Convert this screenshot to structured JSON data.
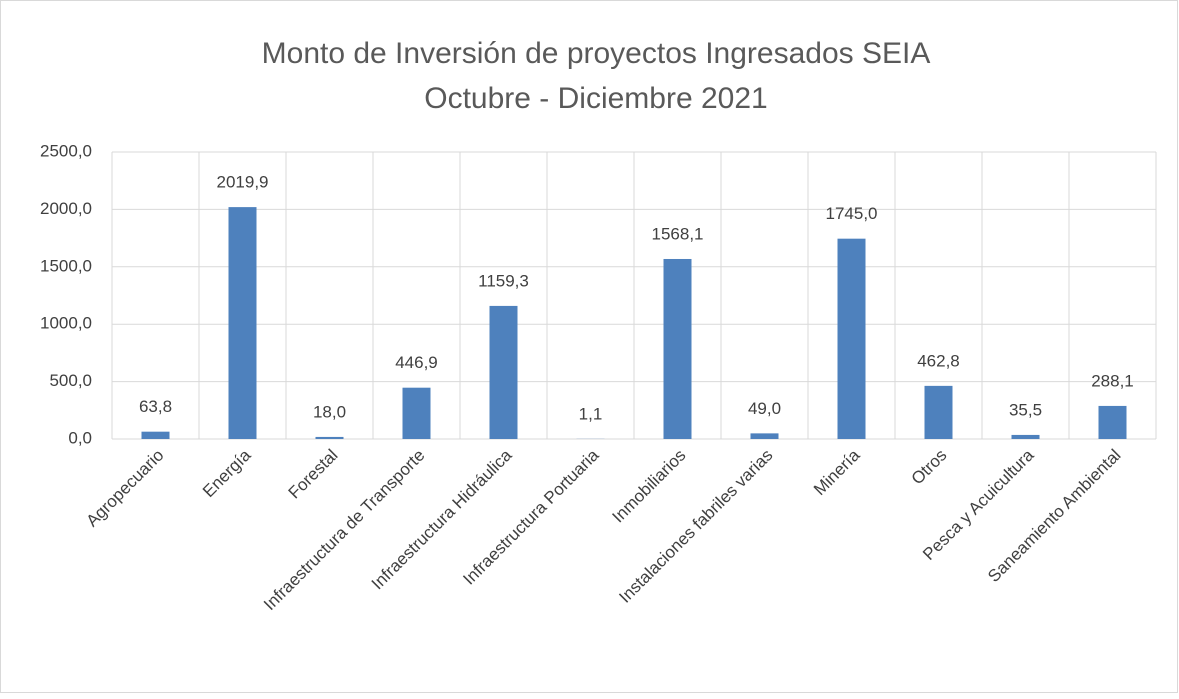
{
  "chart_data": {
    "type": "bar",
    "title": "Monto de Inversión de proyectos Ingresados SEIA",
    "subtitle": "Octubre - Diciembre 2021",
    "categories": [
      "Agropecuario",
      "Energía",
      "Forestal",
      "Infraestructura de Transporte",
      "Infraestructura Hidráulica",
      "Infraestructura Portuaria",
      "Inmobiliarios",
      "Instalaciones fabriles varias",
      "Minería",
      "Otros",
      "Pesca y Acuicultura",
      "Saneamiento Ambiental"
    ],
    "values": [
      63.8,
      2019.9,
      18.0,
      446.9,
      1159.3,
      1.1,
      1568.1,
      49.0,
      1745.0,
      462.8,
      35.5,
      288.1
    ],
    "value_labels": [
      "63,8",
      "2019,9",
      "18,0",
      "446,9",
      "1159,3",
      "1,1",
      "1568,1",
      "49,0",
      "1745,0",
      "462,8",
      "35,5",
      "288,1"
    ],
    "color": "#4e81bd",
    "ylim": [
      0,
      2500
    ],
    "yticks": [
      {
        "value": 0,
        "label": "0,0"
      },
      {
        "value": 500,
        "label": "500,0"
      },
      {
        "value": 1000,
        "label": "1000,0"
      },
      {
        "value": 1500,
        "label": "1500,0"
      },
      {
        "value": 2000,
        "label": "2000,0"
      },
      {
        "value": 2500,
        "label": "2500,0"
      }
    ],
    "grid": true
  }
}
